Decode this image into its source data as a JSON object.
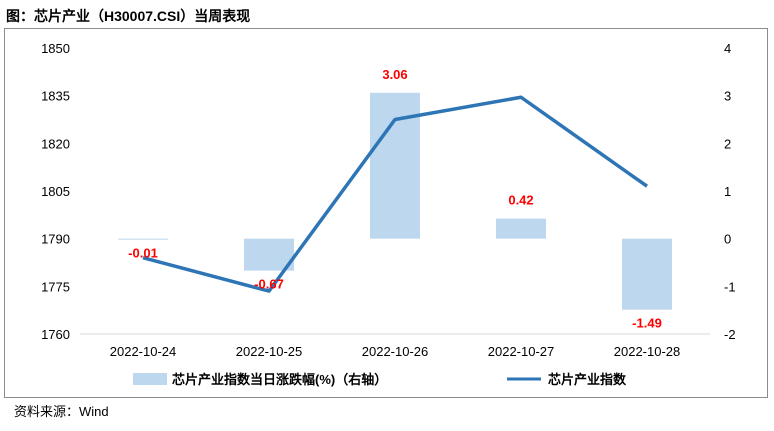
{
  "title": "图：芯片产业（H30007.CSI）当周表现",
  "source": "资料来源：Wind",
  "chart_data": {
    "type": "bar+line",
    "categories": [
      "2022-10-24",
      "2022-10-25",
      "2022-10-26",
      "2022-10-27",
      "2022-10-28"
    ],
    "left_axis": {
      "min": 1760,
      "max": 1850,
      "ticks": [
        1760,
        1775,
        1790,
        1805,
        1820,
        1835,
        1850
      ]
    },
    "right_axis": {
      "min": -2,
      "max": 4,
      "ticks": [
        -2,
        -1,
        0,
        1,
        2,
        3,
        4
      ]
    },
    "bar_series": {
      "name": "芯片产业指数当日涨跌幅(%)（右轴）",
      "axis": "right",
      "values": [
        -0.01,
        -0.67,
        3.06,
        0.42,
        -1.49
      ],
      "labels": [
        "-0.01",
        "-0.67",
        "3.06",
        "0.42",
        "-1.49"
      ],
      "color": "#bdd7ee",
      "label_color": "#ff0000"
    },
    "line_series": {
      "name": "芯片产业指数",
      "axis": "left",
      "values": [
        1784,
        1773.5,
        1827.5,
        1834.5,
        1806.5
      ],
      "color": "#2e75b6"
    },
    "grid": false,
    "legend_position": "bottom"
  }
}
